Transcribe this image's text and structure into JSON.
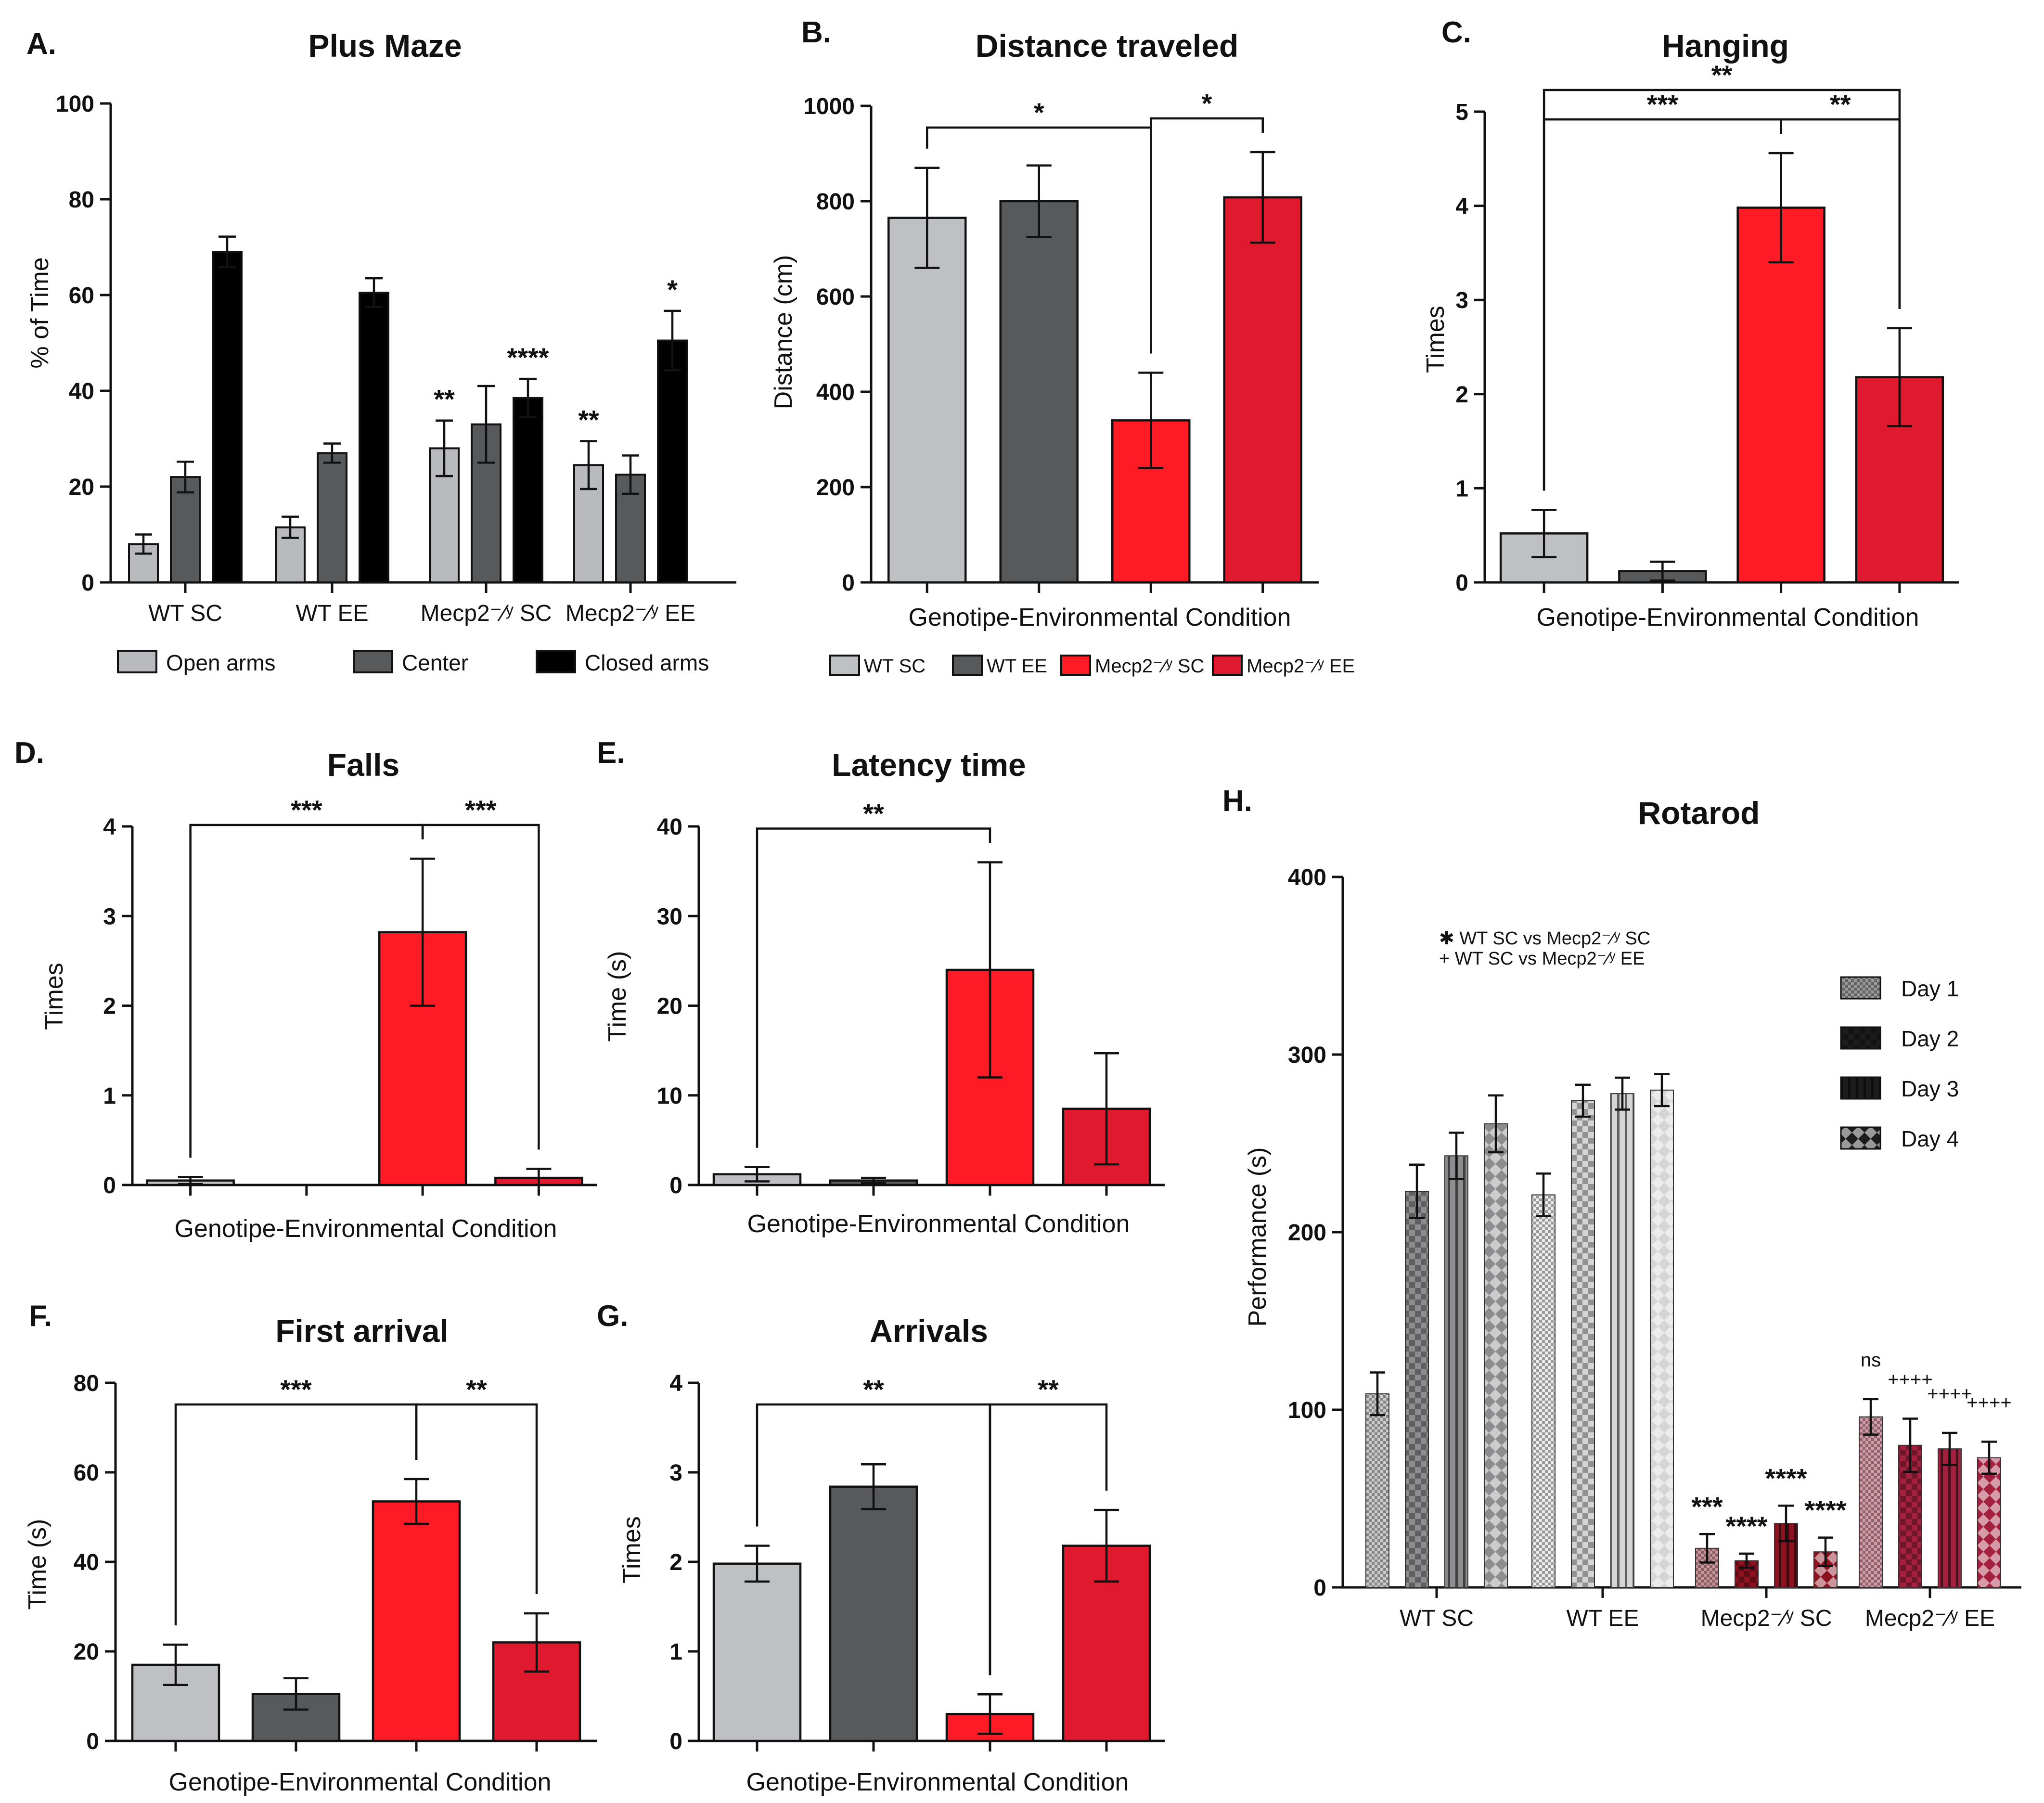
{
  "chart_data": [
    {
      "id": "A",
      "panel_label": "A.",
      "type": "bar",
      "title": "Plus Maze",
      "xlabel": "",
      "ylabel": "% of Time",
      "ylim": [
        0,
        100
      ],
      "yticks": [
        0,
        20,
        40,
        60,
        80,
        100
      ],
      "categories": [
        "WT SC",
        "WT EE",
        "Mecp2⁻⁄ʸ SC",
        "Mecp2⁻⁄ʸ EE"
      ],
      "series": [
        {
          "name": "Open arms",
          "color": "#b9babe",
          "values": [
            8,
            11.5,
            28,
            24.5
          ],
          "errors": [
            2,
            2.2,
            5.8,
            5
          ]
        },
        {
          "name": "Center",
          "color": "#58595b",
          "values": [
            22,
            27,
            33,
            22.5
          ],
          "errors": [
            3.2,
            2,
            8,
            4
          ]
        },
        {
          "name": "Closed arms",
          "color": "#000000",
          "values": [
            69,
            60.5,
            38.5,
            50.5
          ],
          "errors": [
            3.2,
            3,
            4,
            6.2
          ]
        }
      ],
      "annotations": [
        {
          "category": 2,
          "series": 0,
          "text": "**"
        },
        {
          "category": 2,
          "series": 2,
          "text": "****"
        },
        {
          "category": 3,
          "series": 0,
          "text": "**"
        },
        {
          "category": 3,
          "series": 2,
          "text": "*"
        }
      ],
      "legend": "bottom"
    },
    {
      "id": "B",
      "panel_label": "B.",
      "type": "bar",
      "title": "Distance traveled",
      "xlabel": "Genotipe-Environmental Condition",
      "ylabel": "Distance (cm)",
      "ylim": [
        0,
        1000
      ],
      "yticks": [
        0,
        200,
        400,
        600,
        800,
        1000
      ],
      "categories": [
        "WT SC",
        "WT EE",
        "Mecp2⁻⁄ʸ SC",
        "Mecp2⁻⁄ʸ EE"
      ],
      "colors": [
        "#bfc0c4",
        "#58595b",
        "#fe1b25",
        "#df1a2e"
      ],
      "values": [
        765,
        800,
        340,
        808
      ],
      "errors": [
        105,
        75,
        100,
        95
      ],
      "brackets": [
        {
          "from": 0,
          "to": 2,
          "text": "*"
        },
        {
          "from": 2,
          "to": 3,
          "text": "*"
        }
      ],
      "legend": "bottom",
      "legend_entries": [
        "WT SC",
        "WT EE",
        "Mecp2⁻⁄ʸ SC",
        "Mecp2⁻⁄ʸ EE"
      ]
    },
    {
      "id": "C",
      "panel_label": "C.",
      "type": "bar",
      "title": "Hanging",
      "xlabel": "Genotipe-Environmental Condition",
      "ylabel": "Times",
      "ylim": [
        0,
        5
      ],
      "yticks": [
        0,
        1,
        2,
        3,
        4,
        5
      ],
      "categories": [
        "WT SC",
        "WT EE",
        "Mecp2⁻⁄ʸ SC",
        "Mecp2⁻⁄ʸ EE"
      ],
      "colors": [
        "#bfc0c4",
        "#58595b",
        "#fe1b25",
        "#df1a2e"
      ],
      "values": [
        0.52,
        0.12,
        3.98,
        2.18
      ],
      "errors": [
        0.25,
        0.1,
        0.58,
        0.52
      ],
      "brackets": [
        {
          "from": 0,
          "to": 2,
          "text": "***"
        },
        {
          "from": 2,
          "to": 3,
          "text": "**"
        },
        {
          "from": 0,
          "to": 3,
          "text": "**"
        }
      ]
    },
    {
      "id": "D",
      "panel_label": "D.",
      "type": "bar",
      "title": "Falls",
      "xlabel": "Genotipe-Environmental Condition",
      "ylabel": "Times",
      "ylim": [
        0,
        4
      ],
      "yticks": [
        0,
        1,
        2,
        3,
        4
      ],
      "categories": [
        "WT SC",
        "WT EE",
        "Mecp2⁻⁄ʸ SC",
        "Mecp2⁻⁄ʸ EE"
      ],
      "colors": [
        "#bfc0c4",
        "#58595b",
        "#fe1b25",
        "#df1a2e"
      ],
      "values": [
        0.05,
        0,
        2.82,
        0.08
      ],
      "errors": [
        0.04,
        0,
        0.82,
        0.1
      ],
      "brackets": [
        {
          "from": 0,
          "to": 2,
          "text": "***"
        },
        {
          "from": 2,
          "to": 3,
          "text": "***"
        }
      ]
    },
    {
      "id": "E",
      "panel_label": "E.",
      "type": "bar",
      "title": "Latency time",
      "xlabel": "Genotipe-Environmental Condition",
      "ylabel": "Time (s)",
      "ylim": [
        0,
        40
      ],
      "yticks": [
        0,
        10,
        20,
        30,
        40
      ],
      "categories": [
        "WT SC",
        "WT EE",
        "Mecp2⁻⁄ʸ SC",
        "Mecp2⁻⁄ʸ EE"
      ],
      "colors": [
        "#bfc0c4",
        "#58595b",
        "#fe1b25",
        "#df1a2e"
      ],
      "values": [
        1.2,
        0.5,
        24,
        8.5
      ],
      "errors": [
        0.8,
        0.3,
        12,
        6.2
      ],
      "brackets": [
        {
          "from": 0,
          "to": 2,
          "text": "**"
        }
      ]
    },
    {
      "id": "F",
      "panel_label": "F.",
      "type": "bar",
      "title": "First arrival",
      "xlabel": "Genotipe-Environmental Condition",
      "ylabel": "Time (s)",
      "ylim": [
        0,
        80
      ],
      "yticks": [
        0,
        20,
        40,
        60,
        80
      ],
      "categories": [
        "WT SC",
        "WT EE",
        "Mecp2⁻⁄ʸ SC",
        "Mecp2⁻⁄ʸ EE"
      ],
      "colors": [
        "#bfc0c4",
        "#58595b",
        "#fe1b25",
        "#df1a2e"
      ],
      "values": [
        17,
        10.5,
        53.5,
        22
      ],
      "errors": [
        4.5,
        3.5,
        5,
        6.5
      ],
      "brackets": [
        {
          "from": 0,
          "to": 2,
          "text": "***"
        },
        {
          "from": 2,
          "to": 3,
          "text": "**"
        }
      ]
    },
    {
      "id": "G",
      "panel_label": "G.",
      "type": "bar",
      "title": "Arrivals",
      "xlabel": "Genotipe-Environmental Condition",
      "ylabel": "Times",
      "ylim": [
        0,
        4
      ],
      "yticks": [
        0,
        1,
        2,
        3,
        4
      ],
      "categories": [
        "WT SC",
        "WT EE",
        "Mecp2⁻⁄ʸ SC",
        "Mecp2⁻⁄ʸ EE"
      ],
      "colors": [
        "#bfc0c4",
        "#58595b",
        "#fe1b25",
        "#df1a2e"
      ],
      "values": [
        1.98,
        2.84,
        0.3,
        2.18
      ],
      "errors": [
        0.2,
        0.25,
        0.22,
        0.4
      ],
      "brackets": [
        {
          "from": 0,
          "to": 2,
          "text": "**"
        },
        {
          "from": 2,
          "to": 3,
          "text": "**"
        }
      ]
    },
    {
      "id": "H",
      "panel_label": "H.",
      "type": "bar",
      "title": "Rotarod",
      "xlabel": "",
      "ylabel": "Performance (s)",
      "ylim": [
        0,
        400
      ],
      "yticks": [
        0,
        100,
        200,
        300,
        400
      ],
      "categories": [
        "WT SC",
        "WT EE",
        "Mecp2⁻⁄ʸ SC",
        "Mecp2⁻⁄ʸ EE"
      ],
      "group_colors": [
        "#8d8d90",
        "#d5d5d6",
        "#8c1220",
        "#a3213f"
      ],
      "series": [
        {
          "name": "Day 1",
          "values": [
            109,
            221,
            22,
            96
          ],
          "errors": [
            12,
            12,
            8,
            10
          ]
        },
        {
          "name": "Day 2",
          "values": [
            223,
            274,
            15,
            80
          ],
          "errors": [
            15,
            9,
            4,
            15
          ]
        },
        {
          "name": "Day 3",
          "values": [
            243,
            278,
            36,
            78
          ],
          "errors": [
            13,
            9,
            10,
            9
          ]
        },
        {
          "name": "Day 4",
          "values": [
            261,
            280,
            20,
            73
          ],
          "errors": [
            16,
            9,
            8,
            9
          ]
        }
      ],
      "annotations": [
        {
          "category": 2,
          "series": 0,
          "text": "***"
        },
        {
          "category": 2,
          "series": 1,
          "text": "****"
        },
        {
          "category": 2,
          "series": 2,
          "text": "****"
        },
        {
          "category": 2,
          "series": 3,
          "text": "****"
        },
        {
          "category": 3,
          "series": 0,
          "text": "ns"
        },
        {
          "category": 3,
          "series": 1,
          "text": "++++"
        },
        {
          "category": 3,
          "series": 2,
          "text": "++++"
        },
        {
          "category": 3,
          "series": 3,
          "text": "++++"
        }
      ],
      "notes": [
        "✱ WT SC vs Mecp2⁻⁄ʸ SC",
        "+ WT SC vs Mecp2⁻⁄ʸ EE"
      ],
      "legend": "top-right"
    }
  ]
}
